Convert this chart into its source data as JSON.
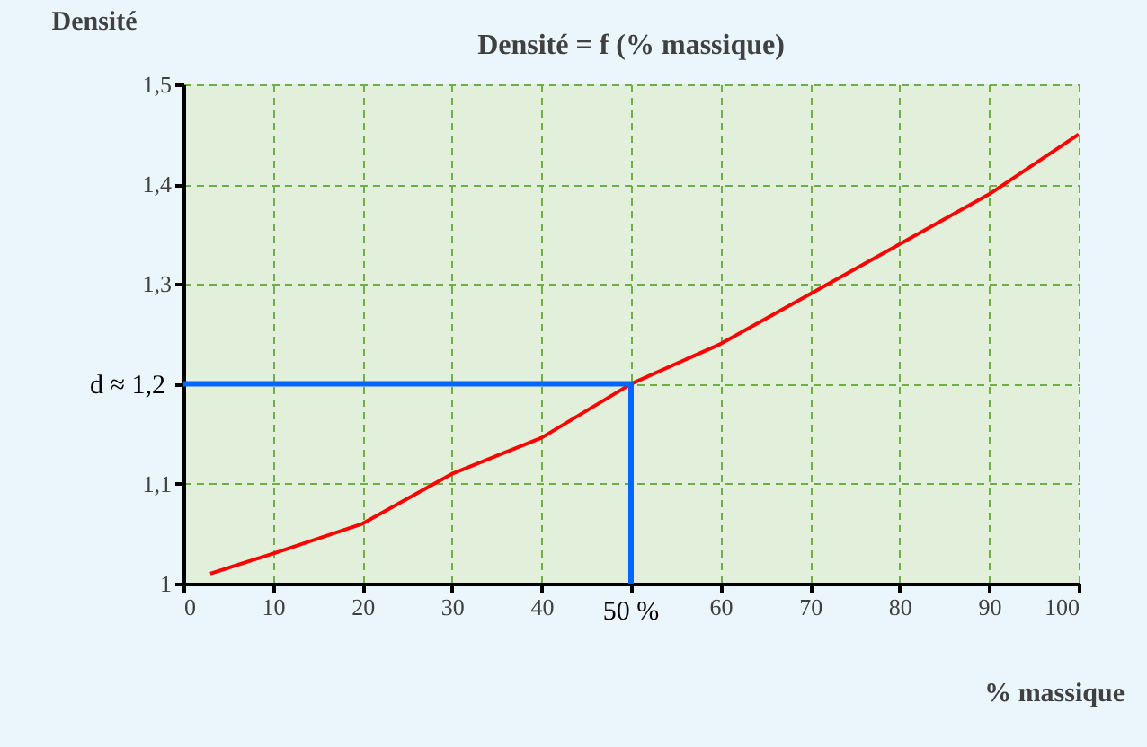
{
  "chart_data": {
    "type": "line",
    "title": "Densité = f (% massique)",
    "xlabel": "% massique",
    "ylabel": "Densité",
    "xlim": [
      0,
      100
    ],
    "xticks": [
      0,
      10,
      20,
      30,
      40,
      {
        "value": 50,
        "label": null
      },
      60,
      70,
      80,
      90,
      100
    ],
    "ylim": [
      1,
      1.5
    ],
    "yticks": [
      {
        "value": 1,
        "label": "1"
      },
      {
        "value": 1.1,
        "label": "1,1"
      },
      {
        "value": 1.2,
        "label": null
      },
      {
        "value": 1.3,
        "label": "1,3"
      },
      {
        "value": 1.4,
        "label": "1,4"
      },
      {
        "value": 1.5,
        "label": "1,5"
      }
    ],
    "grid": true,
    "line_style": "solid",
    "marker": "none",
    "series": [
      {
        "color": "#ff0000",
        "x": [
          3,
          10,
          20,
          30,
          40,
          50,
          60,
          70,
          80,
          90,
          100
        ],
        "values": [
          1.01,
          1.03,
          1.06,
          1.11,
          1.146,
          1.2,
          1.24,
          1.29,
          1.34,
          1.39,
          1.45
        ]
      },
      {
        "color": "#0066ff",
        "x": [
          0,
          50,
          50
        ],
        "values": [
          1.2,
          1.2,
          1
        ]
      }
    ],
    "annotations": [
      {
        "text": "d ≈ 1,2",
        "x": 0,
        "y": 1.2
      },
      {
        "text": "50 %",
        "x": 50,
        "y": 1
      }
    ]
  }
}
